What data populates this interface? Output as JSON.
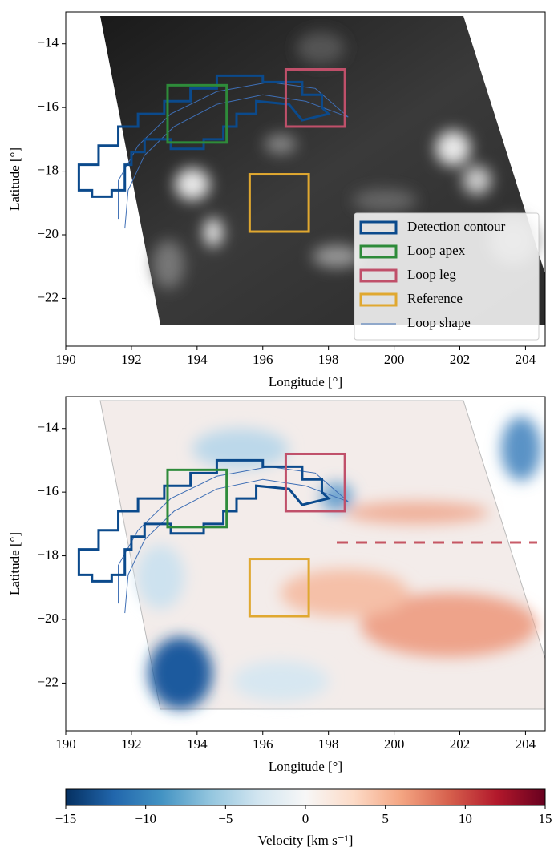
{
  "chart_data": [
    {
      "type": "image",
      "xlabel": "Longitude [°]",
      "ylabel": "Latitude [°]",
      "xlim": [
        190,
        204.6
      ],
      "ylim": [
        -23.5,
        -13
      ],
      "xticks": [
        190,
        192,
        194,
        196,
        198,
        200,
        202,
        204
      ],
      "yticks": [
        {
          "value": -22,
          "label": "−22"
        },
        {
          "value": -20,
          "label": "−20"
        },
        {
          "value": -18,
          "label": "−18"
        },
        {
          "value": -16,
          "label": "−16"
        },
        {
          "value": -14,
          "label": "−14"
        }
      ],
      "contour": {
        "name": "Detection contour",
        "color": "#0b4a8c",
        "x": [
          190.4,
          190.4,
          191.0,
          191.0,
          191.6,
          191.6,
          192.2,
          192.2,
          193.0,
          193.0,
          193.8,
          193.8,
          194.6,
          194.6,
          196.0,
          196.0,
          197.2,
          197.2,
          197.8,
          197.8,
          198.0,
          197.2,
          196.8,
          195.8,
          195.8,
          195.2,
          195.2,
          194.8,
          194.8,
          194.2,
          194.2,
          193.2,
          193.2,
          192.4,
          192.4,
          192.0,
          192.0,
          191.8,
          191.8,
          191.4,
          191.4,
          190.8,
          190.8
        ],
        "y": [
          -18.6,
          -17.8,
          -17.8,
          -17.2,
          -17.2,
          -16.6,
          -16.6,
          -16.2,
          -16.2,
          -15.8,
          -15.8,
          -15.4,
          -15.4,
          -15.0,
          -15.0,
          -15.2,
          -15.2,
          -15.6,
          -15.6,
          -16.0,
          -16.2,
          -16.4,
          -15.9,
          -15.8,
          -16.2,
          -16.2,
          -16.6,
          -16.6,
          -17.0,
          -17.0,
          -17.3,
          -17.3,
          -17.0,
          -17.0,
          -17.4,
          -17.4,
          -17.8,
          -17.8,
          -18.6,
          -18.6,
          -18.8,
          -18.8,
          -18.6
        ]
      },
      "boxes": [
        {
          "name": "Loop apex",
          "color": "#2e8b3a",
          "x": [
            193.1,
            194.9
          ],
          "y": [
            -17.1,
            -15.3
          ]
        },
        {
          "name": "Loop leg",
          "color": "#c0506a",
          "x": [
            196.7,
            198.5
          ],
          "y": [
            -16.6,
            -14.8
          ]
        },
        {
          "name": "Reference",
          "color": "#e0a830",
          "x": [
            195.6,
            197.4
          ],
          "y": [
            -19.9,
            -18.1
          ]
        }
      ],
      "loop": {
        "name": "Loop shape",
        "color": "#3f6fb5",
        "x": [
          191.6,
          191.6,
          192.2,
          193.2,
          194.6,
          196.2,
          197.6,
          198.6,
          197.3,
          196.0,
          194.6,
          193.3,
          192.4,
          191.9,
          191.8
        ],
        "y": [
          -19.5,
          -18.3,
          -17.2,
          -16.2,
          -15.5,
          -15.2,
          -15.4,
          -16.3,
          -15.8,
          -15.6,
          -15.9,
          -16.6,
          -17.5,
          -18.6,
          -19.8
        ]
      },
      "legend": "lower right"
    },
    {
      "type": "image",
      "xlabel": "Longitude [°]",
      "ylabel": "Latitude [°]",
      "xlim": [
        190,
        204.6
      ],
      "ylim": [
        -23.5,
        -13
      ],
      "xticks": [
        190,
        192,
        194,
        196,
        198,
        200,
        202,
        204
      ],
      "yticks": [
        {
          "value": -22,
          "label": "−22"
        },
        {
          "value": -20,
          "label": "−20"
        },
        {
          "value": -18,
          "label": "−18"
        },
        {
          "value": -16,
          "label": "−16"
        },
        {
          "value": -14,
          "label": "−14"
        }
      ],
      "contour": {
        "name": "Detection contour",
        "color": "#0b4a8c",
        "x": [
          190.4,
          190.4,
          191.0,
          191.0,
          191.6,
          191.6,
          192.2,
          192.2,
          193.0,
          193.0,
          193.8,
          193.8,
          194.6,
          194.6,
          196.0,
          196.0,
          197.2,
          197.2,
          197.8,
          197.8,
          198.0,
          197.2,
          196.8,
          195.8,
          195.8,
          195.2,
          195.2,
          194.8,
          194.8,
          194.2,
          194.2,
          193.2,
          193.2,
          192.4,
          192.4,
          192.0,
          192.0,
          191.8,
          191.8,
          191.4,
          191.4,
          190.8,
          190.8
        ],
        "y": [
          -18.6,
          -17.8,
          -17.8,
          -17.2,
          -17.2,
          -16.6,
          -16.6,
          -16.2,
          -16.2,
          -15.8,
          -15.8,
          -15.4,
          -15.4,
          -15.0,
          -15.0,
          -15.2,
          -15.2,
          -15.6,
          -15.6,
          -16.0,
          -16.2,
          -16.4,
          -15.9,
          -15.8,
          -16.2,
          -16.2,
          -16.6,
          -16.6,
          -17.0,
          -17.0,
          -17.3,
          -17.3,
          -17.0,
          -17.0,
          -17.4,
          -17.4,
          -17.8,
          -17.8,
          -18.6,
          -18.6,
          -18.8,
          -18.8,
          -18.6
        ]
      },
      "boxes": [
        {
          "name": "Loop apex",
          "color": "#2e8b3a",
          "x": [
            193.1,
            194.9
          ],
          "y": [
            -17.1,
            -15.3
          ]
        },
        {
          "name": "Loop leg",
          "color": "#c0506a",
          "x": [
            196.7,
            198.5
          ],
          "y": [
            -16.6,
            -14.8
          ]
        },
        {
          "name": "Reference",
          "color": "#e0a830",
          "x": [
            195.6,
            197.4
          ],
          "y": [
            -19.9,
            -18.1
          ]
        }
      ],
      "loop": {
        "name": "Loop shape",
        "color": "#3f6fb5",
        "x": [
          191.6,
          191.6,
          192.2,
          193.2,
          194.6,
          196.2,
          197.6,
          198.6,
          197.3,
          196.0,
          194.6,
          193.3,
          192.4,
          191.9,
          191.8
        ],
        "y": [
          -19.5,
          -18.3,
          -17.2,
          -16.2,
          -15.5,
          -15.2,
          -15.4,
          -16.3,
          -15.8,
          -15.6,
          -15.9,
          -16.6,
          -17.5,
          -18.6,
          -19.8
        ]
      }
    },
    {
      "type": "colorbar",
      "label": "Velocity [km s⁻¹]",
      "lim": [
        -15,
        15
      ],
      "ticks": [
        {
          "value": -15,
          "label": "−15"
        },
        {
          "value": -10,
          "label": "−10"
        },
        {
          "value": -5,
          "label": "−5"
        },
        0,
        5,
        10,
        15
      ],
      "colors": [
        "#053061",
        "#2166ac",
        "#4393c3",
        "#92c5de",
        "#d1e5f0",
        "#f7f7f7",
        "#fddbc7",
        "#f4a582",
        "#d6604d",
        "#b2182b",
        "#67001f"
      ]
    }
  ]
}
